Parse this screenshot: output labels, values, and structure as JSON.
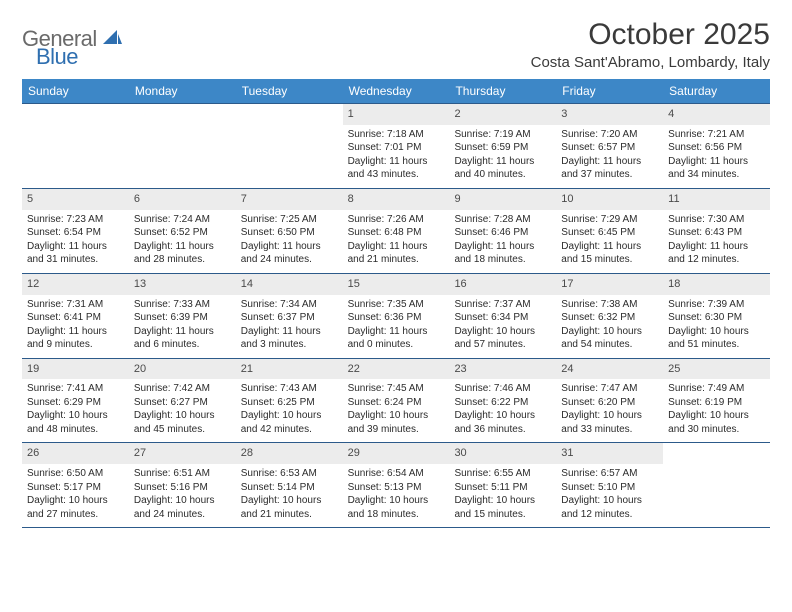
{
  "brand": {
    "name_part1": "General",
    "name_part2": "Blue"
  },
  "title": "October 2025",
  "location": "Costa Sant'Abramo, Lombardy, Italy",
  "colors": {
    "header_bg": "#3d87c7",
    "header_text": "#ffffff",
    "rule": "#2c5a8a",
    "daynum_bg": "#ececec",
    "body_text": "#2b2b2b",
    "brand_gray": "#6a6a6a",
    "brand_blue": "#2f6fb0"
  },
  "weekdays": [
    "Sunday",
    "Monday",
    "Tuesday",
    "Wednesday",
    "Thursday",
    "Friday",
    "Saturday"
  ],
  "weeks": [
    [
      null,
      null,
      null,
      {
        "n": "1",
        "sr": "7:18 AM",
        "ss": "7:01 PM",
        "dl": "11 hours and 43 minutes."
      },
      {
        "n": "2",
        "sr": "7:19 AM",
        "ss": "6:59 PM",
        "dl": "11 hours and 40 minutes."
      },
      {
        "n": "3",
        "sr": "7:20 AM",
        "ss": "6:57 PM",
        "dl": "11 hours and 37 minutes."
      },
      {
        "n": "4",
        "sr": "7:21 AM",
        "ss": "6:56 PM",
        "dl": "11 hours and 34 minutes."
      }
    ],
    [
      {
        "n": "5",
        "sr": "7:23 AM",
        "ss": "6:54 PM",
        "dl": "11 hours and 31 minutes."
      },
      {
        "n": "6",
        "sr": "7:24 AM",
        "ss": "6:52 PM",
        "dl": "11 hours and 28 minutes."
      },
      {
        "n": "7",
        "sr": "7:25 AM",
        "ss": "6:50 PM",
        "dl": "11 hours and 24 minutes."
      },
      {
        "n": "8",
        "sr": "7:26 AM",
        "ss": "6:48 PM",
        "dl": "11 hours and 21 minutes."
      },
      {
        "n": "9",
        "sr": "7:28 AM",
        "ss": "6:46 PM",
        "dl": "11 hours and 18 minutes."
      },
      {
        "n": "10",
        "sr": "7:29 AM",
        "ss": "6:45 PM",
        "dl": "11 hours and 15 minutes."
      },
      {
        "n": "11",
        "sr": "7:30 AM",
        "ss": "6:43 PM",
        "dl": "11 hours and 12 minutes."
      }
    ],
    [
      {
        "n": "12",
        "sr": "7:31 AM",
        "ss": "6:41 PM",
        "dl": "11 hours and 9 minutes."
      },
      {
        "n": "13",
        "sr": "7:33 AM",
        "ss": "6:39 PM",
        "dl": "11 hours and 6 minutes."
      },
      {
        "n": "14",
        "sr": "7:34 AM",
        "ss": "6:37 PM",
        "dl": "11 hours and 3 minutes."
      },
      {
        "n": "15",
        "sr": "7:35 AM",
        "ss": "6:36 PM",
        "dl": "11 hours and 0 minutes."
      },
      {
        "n": "16",
        "sr": "7:37 AM",
        "ss": "6:34 PM",
        "dl": "10 hours and 57 minutes."
      },
      {
        "n": "17",
        "sr": "7:38 AM",
        "ss": "6:32 PM",
        "dl": "10 hours and 54 minutes."
      },
      {
        "n": "18",
        "sr": "7:39 AM",
        "ss": "6:30 PM",
        "dl": "10 hours and 51 minutes."
      }
    ],
    [
      {
        "n": "19",
        "sr": "7:41 AM",
        "ss": "6:29 PM",
        "dl": "10 hours and 48 minutes."
      },
      {
        "n": "20",
        "sr": "7:42 AM",
        "ss": "6:27 PM",
        "dl": "10 hours and 45 minutes."
      },
      {
        "n": "21",
        "sr": "7:43 AM",
        "ss": "6:25 PM",
        "dl": "10 hours and 42 minutes."
      },
      {
        "n": "22",
        "sr": "7:45 AM",
        "ss": "6:24 PM",
        "dl": "10 hours and 39 minutes."
      },
      {
        "n": "23",
        "sr": "7:46 AM",
        "ss": "6:22 PM",
        "dl": "10 hours and 36 minutes."
      },
      {
        "n": "24",
        "sr": "7:47 AM",
        "ss": "6:20 PM",
        "dl": "10 hours and 33 minutes."
      },
      {
        "n": "25",
        "sr": "7:49 AM",
        "ss": "6:19 PM",
        "dl": "10 hours and 30 minutes."
      }
    ],
    [
      {
        "n": "26",
        "sr": "6:50 AM",
        "ss": "5:17 PM",
        "dl": "10 hours and 27 minutes."
      },
      {
        "n": "27",
        "sr": "6:51 AM",
        "ss": "5:16 PM",
        "dl": "10 hours and 24 minutes."
      },
      {
        "n": "28",
        "sr": "6:53 AM",
        "ss": "5:14 PM",
        "dl": "10 hours and 21 minutes."
      },
      {
        "n": "29",
        "sr": "6:54 AM",
        "ss": "5:13 PM",
        "dl": "10 hours and 18 minutes."
      },
      {
        "n": "30",
        "sr": "6:55 AM",
        "ss": "5:11 PM",
        "dl": "10 hours and 15 minutes."
      },
      {
        "n": "31",
        "sr": "6:57 AM",
        "ss": "5:10 PM",
        "dl": "10 hours and 12 minutes."
      },
      null
    ]
  ],
  "labels": {
    "sunrise": "Sunrise:",
    "sunset": "Sunset:",
    "daylight": "Daylight:"
  }
}
